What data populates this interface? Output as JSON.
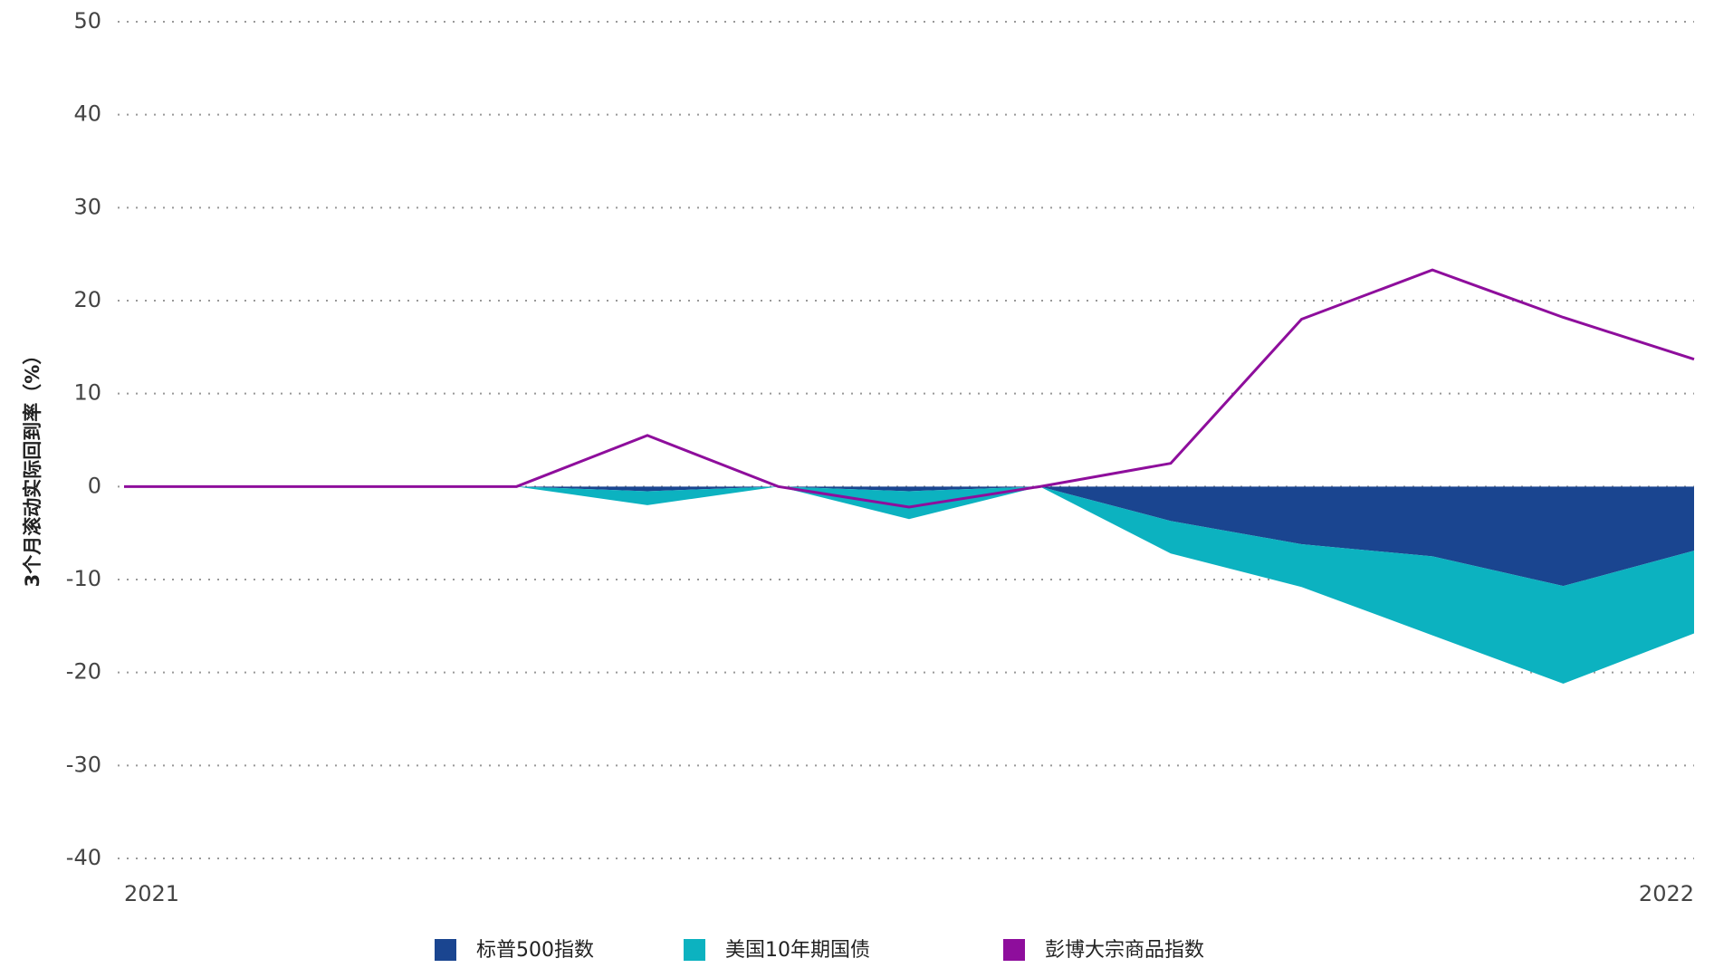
{
  "chart_data": {
    "type": "stacked_area_line",
    "y_label": "3个月滚动实际回到率（%）",
    "categories": [
      "2021",
      null,
      null,
      null,
      null,
      null,
      null,
      null,
      null,
      null,
      null,
      null,
      "2022"
    ],
    "series": [
      {
        "name": "标普500指数",
        "color": "#1a4590",
        "kind": "area",
        "values": [
          0,
          0,
          0,
          0,
          -0.5,
          0,
          -0.5,
          0,
          -3.7,
          -6.2,
          -7.5,
          -10.7,
          -6.9
        ]
      },
      {
        "name": "美国10年期国债",
        "color": "#0cb2c0",
        "kind": "area",
        "values": [
          0,
          0,
          0,
          0,
          -1.5,
          0,
          -3,
          0,
          -3.5,
          -4.6,
          -8.5,
          -10.5,
          -8.9
        ]
      },
      {
        "name": "彭博大宗商品指数",
        "color": "#8e0e9c",
        "kind": "line",
        "values": [
          0,
          0,
          0,
          0,
          5.5,
          0,
          -2.2,
          0,
          2.5,
          18,
          23.3,
          18.2,
          13.7
        ]
      }
    ],
    "ylim": [
      -40,
      50
    ],
    "yticks": [
      -40,
      -30,
      -20,
      -10,
      0,
      10,
      20,
      30,
      40,
      50
    ],
    "grid": true
  }
}
